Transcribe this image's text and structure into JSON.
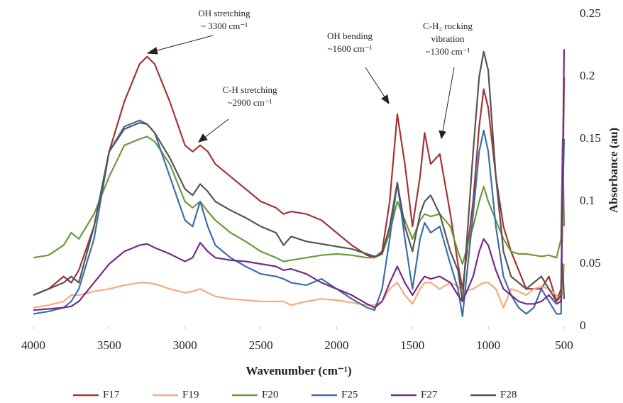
{
  "chart_data": {
    "type": "line",
    "xlabel": "Wavenumber (cm⁻¹)",
    "ylabel": "Absorbance (au)",
    "xlim": [
      4000,
      500
    ],
    "xticks": [
      4000,
      3500,
      3000,
      2500,
      2000,
      1500,
      1000,
      500
    ],
    "ylim": [
      0,
      0.25
    ],
    "yticks": [
      0,
      0.05,
      0.1,
      0.15,
      0.2,
      0.25
    ],
    "y_axis_side": "right",
    "grid": false,
    "legend": "bottom",
    "annotations": [
      {
        "text": [
          "OH stretching",
          "~ 3300 cm⁻¹"
        ]
      },
      {
        "text": [
          "C-H stretching",
          "~2900 cm⁻¹"
        ]
      },
      {
        "text": [
          "OH bending",
          "~1600 cm⁻¹"
        ]
      },
      {
        "text": [
          "C-H₂ rocking",
          "vibration",
          "~1300 cm⁻¹"
        ]
      }
    ],
    "x": [
      4000,
      3900,
      3800,
      3750,
      3700,
      3600,
      3500,
      3400,
      3300,
      3250,
      3200,
      3100,
      3000,
      2950,
      2900,
      2850,
      2800,
      2700,
      2600,
      2500,
      2400,
      2350,
      2300,
      2200,
      2100,
      2000,
      1900,
      1800,
      1750,
      1700,
      1650,
      1600,
      1550,
      1500,
      1450,
      1420,
      1380,
      1320,
      1250,
      1200,
      1170,
      1100,
      1060,
      1030,
      1000,
      950,
      900,
      850,
      800,
      750,
      700,
      650,
      600,
      550,
      520,
      510,
      500
    ],
    "series": [
      {
        "name": "F17",
        "color": "#a23535",
        "values": [
          0.025,
          0.03,
          0.04,
          0.035,
          0.045,
          0.08,
          0.14,
          0.18,
          0.21,
          0.216,
          0.21,
          0.18,
          0.145,
          0.14,
          0.145,
          0.14,
          0.13,
          0.12,
          0.11,
          0.1,
          0.095,
          0.09,
          0.092,
          0.09,
          0.085,
          0.075,
          0.065,
          0.057,
          0.055,
          0.06,
          0.1,
          0.17,
          0.13,
          0.08,
          0.12,
          0.155,
          0.13,
          0.138,
          0.09,
          0.05,
          0.03,
          0.1,
          0.16,
          0.19,
          0.175,
          0.12,
          0.08,
          0.06,
          0.045,
          0.03,
          0.03,
          0.03,
          0.04,
          0.02,
          0.03,
          0.1,
          0.2
        ]
      },
      {
        "name": "F19",
        "color": "#f5aa80",
        "values": [
          0.015,
          0.017,
          0.02,
          0.025,
          0.025,
          0.028,
          0.03,
          0.033,
          0.035,
          0.035,
          0.034,
          0.03,
          0.027,
          0.028,
          0.03,
          0.027,
          0.024,
          0.022,
          0.021,
          0.02,
          0.02,
          0.02,
          0.017,
          0.02,
          0.022,
          0.021,
          0.019,
          0.017,
          0.017,
          0.02,
          0.03,
          0.035,
          0.025,
          0.018,
          0.03,
          0.035,
          0.035,
          0.03,
          0.035,
          0.032,
          0.028,
          0.03,
          0.033,
          0.035,
          0.035,
          0.03,
          0.015,
          0.03,
          0.028,
          0.025,
          0.03,
          0.032,
          0.03,
          0.025,
          0.02,
          0.03,
          0.05
        ]
      },
      {
        "name": "F20",
        "color": "#6b9a3c",
        "values": [
          0.055,
          0.057,
          0.065,
          0.075,
          0.07,
          0.09,
          0.12,
          0.145,
          0.15,
          0.152,
          0.148,
          0.13,
          0.1,
          0.095,
          0.1,
          0.092,
          0.085,
          0.075,
          0.068,
          0.06,
          0.055,
          0.052,
          0.053,
          0.055,
          0.057,
          0.058,
          0.057,
          0.055,
          0.055,
          0.058,
          0.075,
          0.1,
          0.085,
          0.07,
          0.085,
          0.09,
          0.088,
          0.09,
          0.08,
          0.06,
          0.05,
          0.08,
          0.1,
          0.112,
          0.1,
          0.085,
          0.07,
          0.06,
          0.058,
          0.058,
          0.057,
          0.056,
          0.057,
          0.055,
          0.07,
          0.15,
          0.08
        ]
      },
      {
        "name": "F25",
        "color": "#3b6fa8",
        "values": [
          0.01,
          0.012,
          0.015,
          0.02,
          0.03,
          0.07,
          0.14,
          0.16,
          0.165,
          0.162,
          0.155,
          0.12,
          0.085,
          0.08,
          0.1,
          0.08,
          0.065,
          0.055,
          0.048,
          0.042,
          0.04,
          0.038,
          0.035,
          0.033,
          0.038,
          0.03,
          0.022,
          0.015,
          0.013,
          0.03,
          0.07,
          0.115,
          0.07,
          0.03,
          0.07,
          0.083,
          0.075,
          0.08,
          0.05,
          0.03,
          0.008,
          0.09,
          0.14,
          0.157,
          0.14,
          0.08,
          0.04,
          0.025,
          0.015,
          0.01,
          0.015,
          0.03,
          0.02,
          0.01,
          0.01,
          0.1,
          0.15
        ]
      },
      {
        "name": "F27",
        "color": "#762a86",
        "values": [
          0.013,
          0.014,
          0.015,
          0.016,
          0.02,
          0.035,
          0.05,
          0.06,
          0.065,
          0.066,
          0.063,
          0.058,
          0.052,
          0.055,
          0.067,
          0.06,
          0.055,
          0.053,
          0.052,
          0.05,
          0.048,
          0.045,
          0.046,
          0.042,
          0.035,
          0.03,
          0.025,
          0.018,
          0.015,
          0.02,
          0.035,
          0.048,
          0.035,
          0.025,
          0.035,
          0.04,
          0.038,
          0.04,
          0.035,
          0.025,
          0.02,
          0.04,
          0.06,
          0.07,
          0.065,
          0.045,
          0.03,
          0.025,
          0.02,
          0.018,
          0.018,
          0.02,
          0.025,
          0.018,
          0.02,
          0.12,
          0.222
        ]
      },
      {
        "name": "F28",
        "color": "#555555",
        "values": [
          0.025,
          0.03,
          0.035,
          0.04,
          0.035,
          0.08,
          0.14,
          0.158,
          0.163,
          0.162,
          0.155,
          0.135,
          0.11,
          0.105,
          0.114,
          0.108,
          0.1,
          0.093,
          0.087,
          0.08,
          0.075,
          0.065,
          0.072,
          0.068,
          0.066,
          0.064,
          0.062,
          0.058,
          0.056,
          0.058,
          0.08,
          0.115,
          0.08,
          0.06,
          0.09,
          0.1,
          0.105,
          0.09,
          0.06,
          0.045,
          0.02,
          0.14,
          0.2,
          0.22,
          0.205,
          0.12,
          0.06,
          0.04,
          0.035,
          0.03,
          0.035,
          0.04,
          0.03,
          0.02,
          0.025,
          0.05,
          0.022
        ]
      }
    ]
  }
}
